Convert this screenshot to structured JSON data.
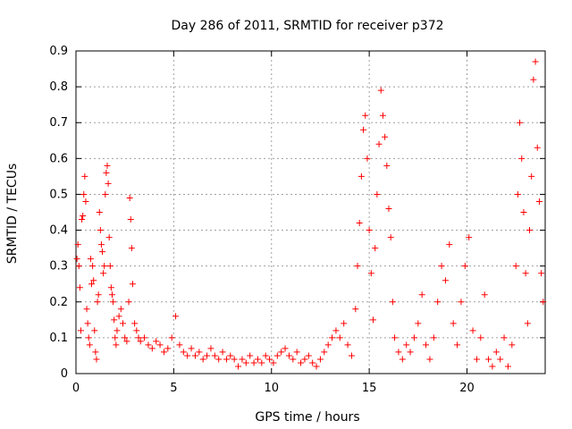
{
  "chart_data": {
    "type": "scatter",
    "title": "Day 286 of 2011, SRMTID for receiver p372",
    "xlabel": "GPS time / hours",
    "ylabel": "SRMTID / TECUs",
    "xlim": [
      0,
      24
    ],
    "ylim": [
      0,
      0.9
    ],
    "xticks": [
      0,
      5,
      10,
      15,
      20
    ],
    "yticks": [
      0,
      0.1,
      0.2,
      0.3,
      0.4,
      0.5,
      0.6,
      0.7,
      0.8,
      0.9
    ],
    "grid": true,
    "marker": "+",
    "color": "#ff0000",
    "series": [
      {
        "name": "SRMTID",
        "points": [
          [
            0.05,
            0.32
          ],
          [
            0.1,
            0.36
          ],
          [
            0.15,
            0.3
          ],
          [
            0.2,
            0.24
          ],
          [
            0.25,
            0.12
          ],
          [
            0.3,
            0.43
          ],
          [
            0.35,
            0.44
          ],
          [
            0.4,
            0.5
          ],
          [
            0.45,
            0.55
          ],
          [
            0.5,
            0.48
          ],
          [
            0.55,
            0.18
          ],
          [
            0.6,
            0.14
          ],
          [
            0.65,
            0.1
          ],
          [
            0.7,
            0.08
          ],
          [
            0.75,
            0.32
          ],
          [
            0.8,
            0.25
          ],
          [
            0.85,
            0.3
          ],
          [
            0.9,
            0.26
          ],
          [
            0.95,
            0.12
          ],
          [
            1.0,
            0.06
          ],
          [
            1.05,
            0.04
          ],
          [
            1.1,
            0.2
          ],
          [
            1.15,
            0.22
          ],
          [
            1.2,
            0.45
          ],
          [
            1.25,
            0.4
          ],
          [
            1.3,
            0.36
          ],
          [
            1.35,
            0.34
          ],
          [
            1.4,
            0.28
          ],
          [
            1.45,
            0.3
          ],
          [
            1.5,
            0.5
          ],
          [
            1.55,
            0.56
          ],
          [
            1.6,
            0.58
          ],
          [
            1.65,
            0.53
          ],
          [
            1.7,
            0.38
          ],
          [
            1.75,
            0.3
          ],
          [
            1.8,
            0.24
          ],
          [
            1.85,
            0.22
          ],
          [
            1.9,
            0.2
          ],
          [
            1.95,
            0.15
          ],
          [
            2.0,
            0.1
          ],
          [
            2.05,
            0.08
          ],
          [
            2.1,
            0.12
          ],
          [
            2.2,
            0.16
          ],
          [
            2.3,
            0.18
          ],
          [
            2.4,
            0.14
          ],
          [
            2.5,
            0.1
          ],
          [
            2.6,
            0.09
          ],
          [
            2.7,
            0.2
          ],
          [
            2.75,
            0.49
          ],
          [
            2.8,
            0.43
          ],
          [
            2.85,
            0.35
          ],
          [
            2.9,
            0.25
          ],
          [
            3.0,
            0.14
          ],
          [
            3.1,
            0.12
          ],
          [
            3.2,
            0.1
          ],
          [
            3.3,
            0.09
          ],
          [
            3.5,
            0.1
          ],
          [
            3.7,
            0.08
          ],
          [
            3.9,
            0.07
          ],
          [
            4.1,
            0.09
          ],
          [
            4.3,
            0.08
          ],
          [
            4.5,
            0.06
          ],
          [
            4.7,
            0.07
          ],
          [
            4.9,
            0.1
          ],
          [
            5.1,
            0.16
          ],
          [
            5.3,
            0.08
          ],
          [
            5.5,
            0.06
          ],
          [
            5.7,
            0.05
          ],
          [
            5.9,
            0.07
          ],
          [
            6.1,
            0.05
          ],
          [
            6.3,
            0.06
          ],
          [
            6.5,
            0.04
          ],
          [
            6.7,
            0.05
          ],
          [
            6.9,
            0.07
          ],
          [
            7.1,
            0.05
          ],
          [
            7.3,
            0.04
          ],
          [
            7.5,
            0.06
          ],
          [
            7.7,
            0.04
          ],
          [
            7.9,
            0.05
          ],
          [
            8.1,
            0.04
          ],
          [
            8.3,
            0.02
          ],
          [
            8.5,
            0.04
          ],
          [
            8.7,
            0.03
          ],
          [
            8.9,
            0.05
          ],
          [
            9.1,
            0.03
          ],
          [
            9.3,
            0.04
          ],
          [
            9.5,
            0.03
          ],
          [
            9.7,
            0.05
          ],
          [
            9.9,
            0.04
          ],
          [
            10.1,
            0.03
          ],
          [
            10.3,
            0.05
          ],
          [
            10.5,
            0.06
          ],
          [
            10.7,
            0.07
          ],
          [
            10.9,
            0.05
          ],
          [
            11.1,
            0.04
          ],
          [
            11.3,
            0.06
          ],
          [
            11.5,
            0.03
          ],
          [
            11.7,
            0.04
          ],
          [
            11.9,
            0.05
          ],
          [
            12.1,
            0.03
          ],
          [
            12.3,
            0.02
          ],
          [
            12.5,
            0.04
          ],
          [
            12.7,
            0.06
          ],
          [
            12.9,
            0.08
          ],
          [
            13.1,
            0.1
          ],
          [
            13.3,
            0.12
          ],
          [
            13.5,
            0.1
          ],
          [
            13.7,
            0.14
          ],
          [
            13.9,
            0.08
          ],
          [
            14.1,
            0.05
          ],
          [
            14.3,
            0.18
          ],
          [
            14.4,
            0.3
          ],
          [
            14.5,
            0.42
          ],
          [
            14.6,
            0.55
          ],
          [
            14.7,
            0.68
          ],
          [
            14.8,
            0.72
          ],
          [
            14.9,
            0.6
          ],
          [
            15.0,
            0.4
          ],
          [
            15.1,
            0.28
          ],
          [
            15.2,
            0.15
          ],
          [
            15.3,
            0.35
          ],
          [
            15.4,
            0.5
          ],
          [
            15.5,
            0.64
          ],
          [
            15.6,
            0.79
          ],
          [
            15.7,
            0.72
          ],
          [
            15.8,
            0.66
          ],
          [
            15.9,
            0.58
          ],
          [
            16.0,
            0.46
          ],
          [
            16.1,
            0.38
          ],
          [
            16.2,
            0.2
          ],
          [
            16.3,
            0.1
          ],
          [
            16.5,
            0.06
          ],
          [
            16.7,
            0.04
          ],
          [
            16.9,
            0.08
          ],
          [
            17.1,
            0.06
          ],
          [
            17.3,
            0.1
          ],
          [
            17.5,
            0.14
          ],
          [
            17.7,
            0.22
          ],
          [
            17.9,
            0.08
          ],
          [
            18.1,
            0.04
          ],
          [
            18.3,
            0.1
          ],
          [
            18.5,
            0.2
          ],
          [
            18.7,
            0.3
          ],
          [
            18.9,
            0.26
          ],
          [
            19.1,
            0.36
          ],
          [
            19.3,
            0.14
          ],
          [
            19.5,
            0.08
          ],
          [
            19.7,
            0.2
          ],
          [
            19.9,
            0.3
          ],
          [
            20.1,
            0.38
          ],
          [
            20.3,
            0.12
          ],
          [
            20.5,
            0.04
          ],
          [
            20.7,
            0.1
          ],
          [
            20.9,
            0.22
          ],
          [
            21.1,
            0.04
          ],
          [
            21.3,
            0.02
          ],
          [
            21.5,
            0.06
          ],
          [
            21.7,
            0.04
          ],
          [
            21.9,
            0.1
          ],
          [
            22.1,
            0.02
          ],
          [
            22.3,
            0.08
          ],
          [
            22.5,
            0.3
          ],
          [
            22.6,
            0.5
          ],
          [
            22.7,
            0.7
          ],
          [
            22.8,
            0.6
          ],
          [
            22.9,
            0.45
          ],
          [
            23.0,
            0.28
          ],
          [
            23.1,
            0.14
          ],
          [
            23.2,
            0.4
          ],
          [
            23.3,
            0.55
          ],
          [
            23.4,
            0.82
          ],
          [
            23.5,
            0.87
          ],
          [
            23.6,
            0.63
          ],
          [
            23.7,
            0.48
          ],
          [
            23.8,
            0.28
          ],
          [
            23.9,
            0.2
          ]
        ]
      }
    ]
  }
}
